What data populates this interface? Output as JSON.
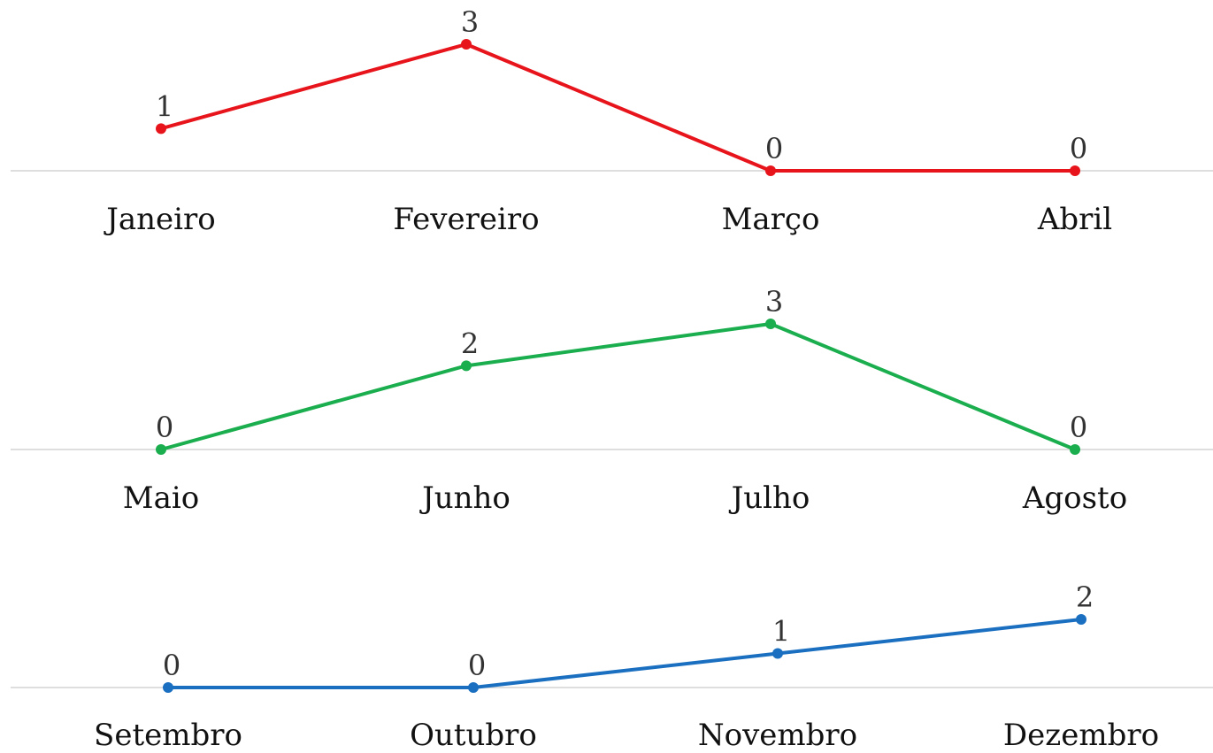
{
  "chart_data": [
    {
      "type": "line",
      "categories": [
        "Janeiro",
        "Fevereiro",
        "Março",
        "Abril"
      ],
      "values": [
        1,
        3,
        0,
        0
      ],
      "color": "#e8141b"
    },
    {
      "type": "line",
      "categories": [
        "Maio",
        "Junho",
        "Julho",
        "Agosto"
      ],
      "values": [
        0,
        2,
        3,
        0
      ],
      "color": "#1aae4e"
    },
    {
      "type": "line",
      "categories": [
        "Setembro",
        "Outubro",
        "Novembro",
        "Dezembro"
      ],
      "values": [
        0,
        0,
        1,
        2
      ],
      "color": "#1a6fc0"
    }
  ]
}
